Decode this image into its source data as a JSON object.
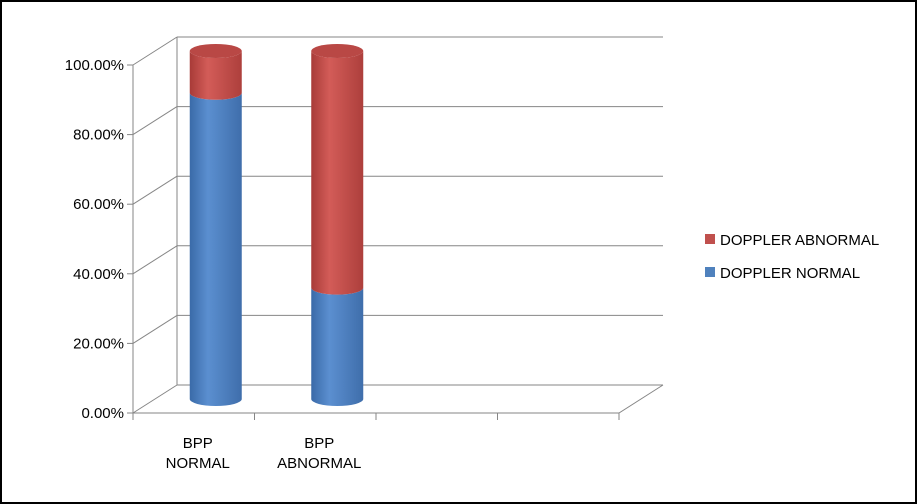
{
  "chart_data": {
    "type": "bar",
    "stacked": true,
    "style": "3d-cylinder",
    "categories": [
      [
        "BPP",
        "NORMAL"
      ],
      [
        "BPP",
        "ABNORMAL"
      ],
      "",
      ""
    ],
    "series": [
      {
        "name": "DOPPLER NORMAL",
        "values": [
          88,
          32,
          null,
          null
        ],
        "color": "#4F81BD"
      },
      {
        "name": "DOPPLER ABNORMAL",
        "values": [
          12,
          68,
          null,
          null
        ],
        "color": "#C0504D"
      }
    ],
    "ylim": [
      0,
      100
    ],
    "yticks": [
      "0.00%",
      "20.00%",
      "40.00%",
      "60.00%",
      "80.00%",
      "100.00%"
    ],
    "legend_entries": [
      "DOPPLER ABNORMAL",
      "DOPPLER NORMAL"
    ],
    "legend_placement": "right",
    "grid": true
  }
}
